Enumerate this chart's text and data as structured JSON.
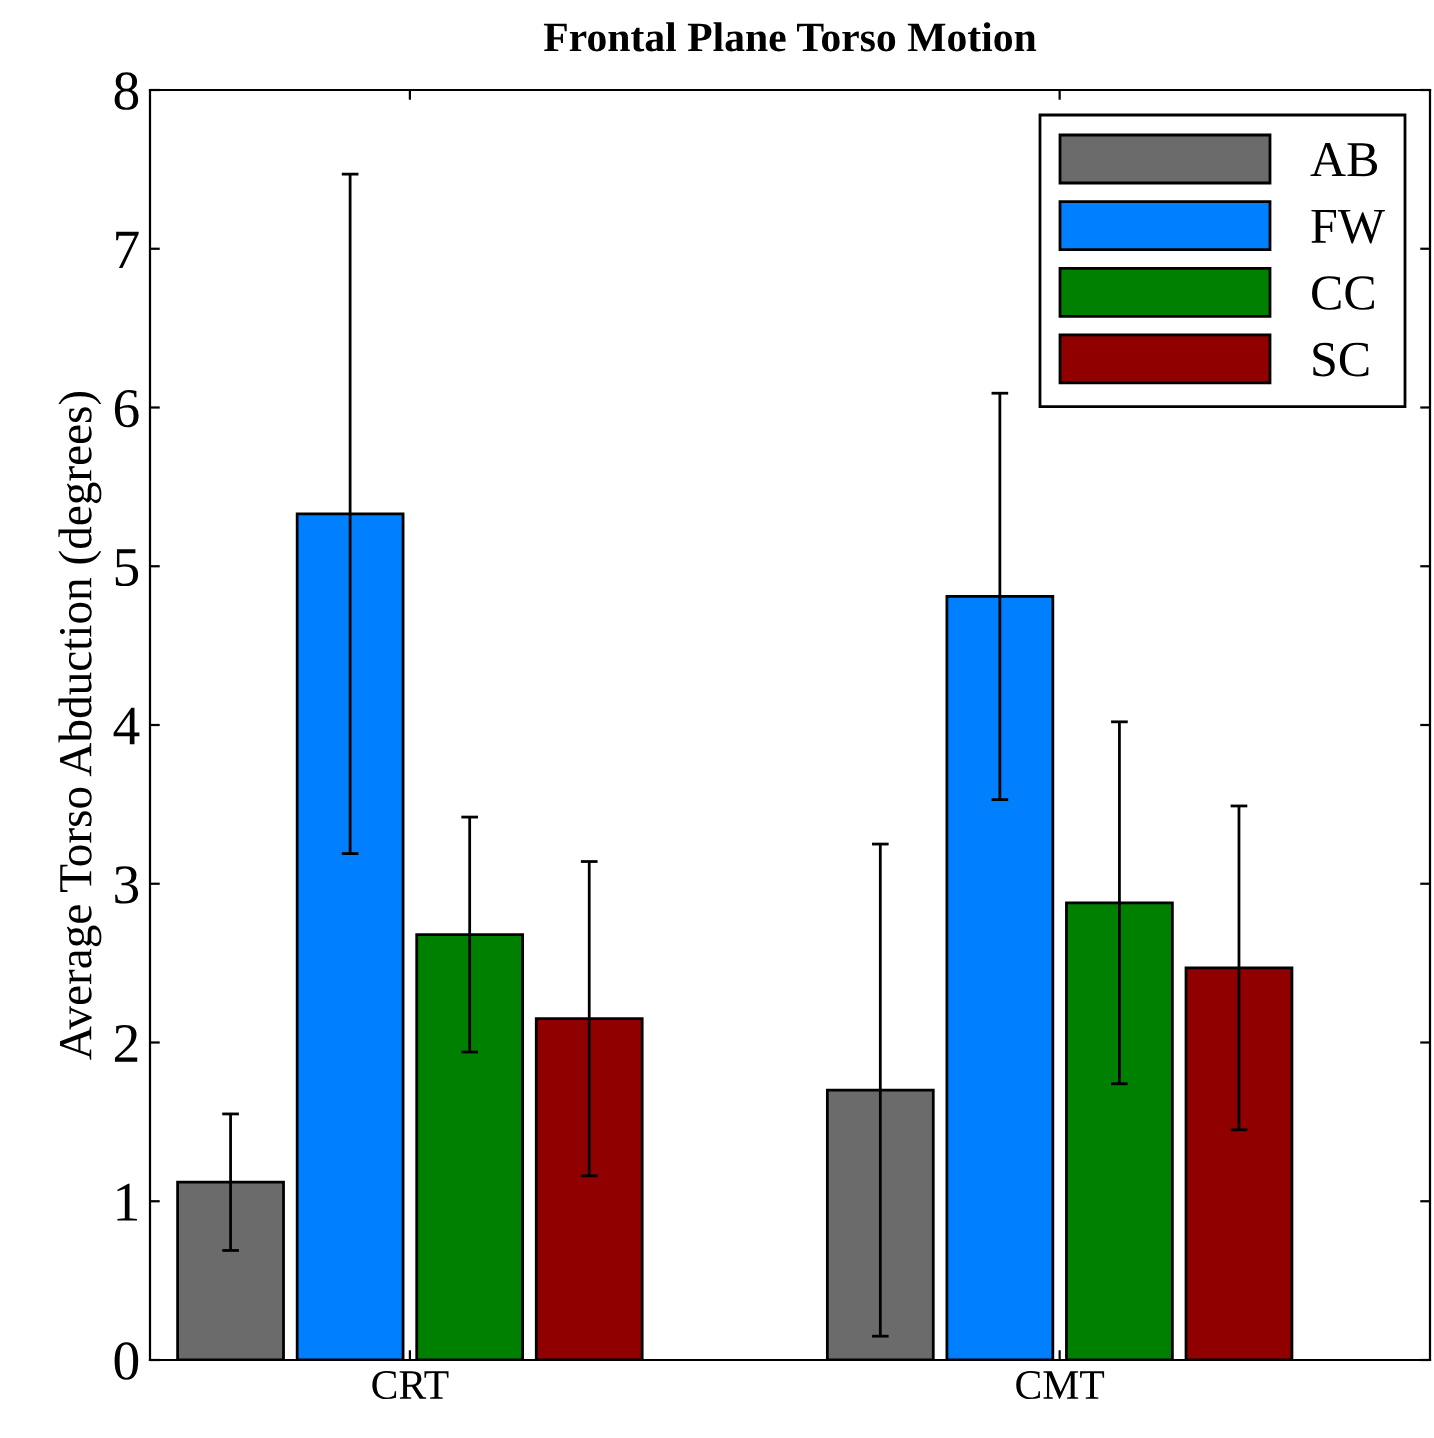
{
  "chart_data": {
    "type": "bar",
    "title": "Frontal Plane Torso Motion",
    "ylabel": "Average Torso Abduction (degrees)",
    "categories": [
      "CRT",
      "CMT"
    ],
    "series": [
      {
        "name": "AB",
        "color": "#6b6b6b",
        "values": [
          1.12,
          1.7
        ],
        "errors": [
          0.43,
          1.55
        ]
      },
      {
        "name": "FW",
        "color": "#0080ff",
        "values": [
          5.33,
          4.81
        ],
        "errors": [
          2.14,
          1.28
        ]
      },
      {
        "name": "CC",
        "color": "#008000",
        "values": [
          2.68,
          2.88
        ],
        "errors": [
          0.74,
          1.14
        ]
      },
      {
        "name": "SC",
        "color": "#900000",
        "values": [
          2.15,
          2.47
        ],
        "errors": [
          0.99,
          1.02
        ]
      }
    ],
    "ylim": [
      0,
      8
    ],
    "yticks": [
      0,
      1,
      2,
      3,
      4,
      5,
      6,
      7,
      8
    ],
    "grid": false,
    "legend": "top right"
  }
}
